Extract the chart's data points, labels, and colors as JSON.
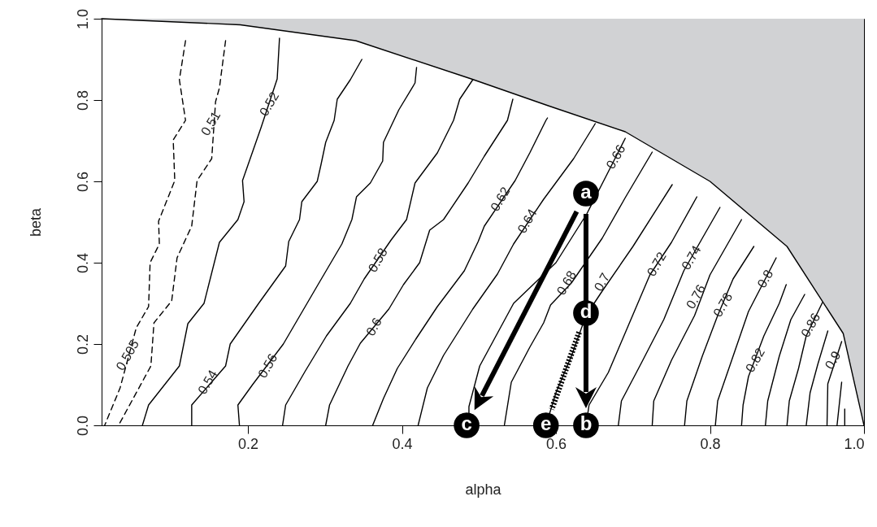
{
  "chart_data": {
    "type": "line",
    "xlabel": "alpha",
    "ylabel": "beta",
    "xlim": [
      0.01,
      1.0
    ],
    "ylim": [
      0,
      1.0
    ],
    "xticks": [
      0.2,
      0.4,
      0.6,
      0.8,
      {
        "value": 1.0,
        "label": "1.0"
      }
    ],
    "yticks": [
      {
        "value": 0,
        "label": "0.0"
      },
      0.2,
      0.4,
      0.6,
      0.8,
      {
        "value": 1.0,
        "label": "1.0"
      }
    ],
    "grid": false,
    "series": [
      {
        "color": "#000000",
        "x": [
          0.01,
          0.19,
          0.34,
          0.49,
          0.59,
          0.69,
          0.8,
          0.9,
          0.973,
          1.0
        ],
        "values": [
          1.0,
          0.985,
          0.946,
          0.852,
          0.786,
          0.722,
          0.6,
          0.44,
          0.226,
          0
        ],
        "lower": [
          1.0,
          0.985,
          0.946,
          0.852,
          0.786,
          0.722,
          0.6,
          0.44,
          0.226,
          0
        ],
        "upper": [
          1.0,
          1.0,
          1.0,
          1.0,
          1.0,
          1.0,
          1.0,
          1.0,
          1.0,
          1.0
        ]
      },
      {
        "color": "#000000",
        "line_style": "dashed",
        "x": [
          0.119,
          0.111,
          0.119,
          0.103,
          0.105,
          0.084,
          0.085,
          0.073,
          0.071,
          0.055,
          0.034,
          0.014
        ],
        "values": [
          0.946,
          0.85,
          0.75,
          0.702,
          0.602,
          0.502,
          0.446,
          0.4,
          0.292,
          0.24,
          0.092,
          0
        ]
      },
      {
        "color": "#000000",
        "line_style": "dashed",
        "x": [
          0.171,
          0.163,
          0.158,
          0.153,
          0.134,
          0.127,
          0.108,
          0.101,
          0.078,
          0.074,
          0.032
        ],
        "values": [
          0.946,
          0.83,
          0.796,
          0.656,
          0.602,
          0.49,
          0.412,
          0.306,
          0.252,
          0.146,
          0
        ]
      },
      {
        "color": "#000000",
        "x": [
          0.241,
          0.238,
          0.217,
          0.193,
          0.195,
          0.187,
          0.163,
          0.143,
          0.122,
          0.111,
          0.071,
          0.063
        ],
        "values": [
          0.952,
          0.852,
          0.732,
          0.602,
          0.55,
          0.506,
          0.45,
          0.3,
          0.25,
          0.146,
          0.05,
          0
        ]
      },
      {
        "color": "#000000",
        "x": [
          0.348,
          0.333,
          0.316,
          0.312,
          0.301,
          0.295,
          0.29,
          0.27,
          0.267,
          0.253,
          0.249,
          0.214,
          0.177,
          0.171,
          0.127,
          0.127
        ],
        "values": [
          0.9,
          0.85,
          0.802,
          0.75,
          0.696,
          0.642,
          0.6,
          0.55,
          0.506,
          0.452,
          0.392,
          0.3,
          0.2,
          0.146,
          0.05,
          0
        ]
      },
      {
        "color": "#000000",
        "x": [
          0.419,
          0.417,
          0.396,
          0.376,
          0.375,
          0.359,
          0.341,
          0.335,
          0.322,
          0.291,
          0.246,
          0.206,
          0.187,
          0.189
        ],
        "values": [
          0.88,
          0.842,
          0.776,
          0.696,
          0.65,
          0.596,
          0.562,
          0.506,
          0.446,
          0.346,
          0.2,
          0.1,
          0.05,
          0
        ]
      },
      {
        "color": "#000000",
        "x": [
          0.492,
          0.475,
          0.467,
          0.446,
          0.417,
          0.406,
          0.386,
          0.351,
          0.333,
          0.302,
          0.274,
          0.249,
          0.245
        ],
        "values": [
          0.85,
          0.802,
          0.75,
          0.67,
          0.596,
          0.506,
          0.456,
          0.36,
          0.3,
          0.22,
          0.132,
          0.05,
          0
        ]
      },
      {
        "color": "#000000",
        "x": [
          0.544,
          0.537,
          0.507,
          0.486,
          0.454,
          0.436,
          0.423,
          0.402,
          0.383,
          0.346,
          0.33,
          0.306,
          0.301
        ],
        "values": [
          0.802,
          0.75,
          0.662,
          0.596,
          0.506,
          0.48,
          0.4,
          0.346,
          0.286,
          0.202,
          0.146,
          0.05,
          0
        ]
      },
      {
        "color": "#000000",
        "x": [
          0.589,
          0.587,
          0.566,
          0.547,
          0.507,
          0.499,
          0.481,
          0.446,
          0.418,
          0.394,
          0.376,
          0.362
        ],
        "values": [
          0.756,
          0.75,
          0.67,
          0.602,
          0.49,
          0.452,
          0.38,
          0.292,
          0.212,
          0.14,
          0.066,
          0
        ]
      },
      {
        "color": "#000000",
        "x": [
          0.651,
          0.623,
          0.584,
          0.545,
          0.524,
          0.492,
          0.454,
          0.433,
          0.421
        ],
        "values": [
          0.742,
          0.656,
          0.556,
          0.446,
          0.372,
          0.286,
          0.172,
          0.092,
          0
        ]
      },
      {
        "color": "#000000",
        "x": [
          0.69,
          0.667,
          0.64,
          0.6,
          0.545,
          0.501,
          0.487,
          0.487
        ],
        "values": [
          0.706,
          0.62,
          0.52,
          0.4,
          0.3,
          0.146,
          0.046,
          0
        ]
      },
      {
        "color": "#000000",
        "x": [
          0.725,
          0.69,
          0.66,
          0.62,
          0.593,
          0.584,
          0.566,
          0.542,
          0.533
        ],
        "values": [
          0.672,
          0.56,
          0.46,
          0.35,
          0.296,
          0.252,
          0.192,
          0.106,
          0
        ]
      },
      {
        "color": "#000000",
        "x": [
          0.751,
          0.7,
          0.66,
          0.639,
          0.62,
          0.6,
          0.587
        ],
        "values": [
          0.592,
          0.44,
          0.33,
          0.27,
          0.17,
          0.08,
          0
        ]
      },
      {
        "color": "#000000",
        "x": [
          0.783,
          0.75,
          0.722,
          0.695,
          0.668,
          0.643,
          0.639
        ],
        "values": [
          0.562,
          0.45,
          0.37,
          0.25,
          0.13,
          0.05,
          0
        ]
      },
      {
        "color": "#000000",
        "x": [
          0.813,
          0.79,
          0.766,
          0.74,
          0.71,
          0.685,
          0.681
        ],
        "values": [
          0.536,
          0.46,
          0.38,
          0.26,
          0.15,
          0.06,
          0
        ]
      },
      {
        "color": "#000000",
        "x": [
          0.841,
          0.8,
          0.78,
          0.75,
          0.727,
          0.725
        ],
        "values": [
          0.506,
          0.37,
          0.27,
          0.16,
          0.06,
          0
        ]
      },
      {
        "color": "#000000",
        "x": [
          0.857,
          0.83,
          0.81,
          0.79,
          0.77,
          0.767
        ],
        "values": [
          0.44,
          0.36,
          0.27,
          0.17,
          0.06,
          0
        ]
      },
      {
        "color": "#000000",
        "x": [
          0.886,
          0.85,
          0.83,
          0.81,
          0.807
        ],
        "values": [
          0.412,
          0.28,
          0.17,
          0.06,
          0
        ]
      },
      {
        "color": "#000000",
        "x": [
          0.899,
          0.89,
          0.87,
          0.85,
          0.843,
          0.841
        ],
        "values": [
          0.346,
          0.3,
          0.22,
          0.12,
          0.05,
          0
        ]
      },
      {
        "color": "#000000",
        "x": [
          0.923,
          0.905,
          0.89,
          0.875,
          0.872
        ],
        "values": [
          0.322,
          0.26,
          0.17,
          0.06,
          0
        ]
      },
      {
        "color": "#000000",
        "x": [
          0.946,
          0.925,
          0.915,
          0.903,
          0.9
        ],
        "values": [
          0.302,
          0.22,
          0.14,
          0.06,
          0
        ]
      },
      {
        "color": "#000000",
        "x": [
          0.953,
          0.94,
          0.93,
          0.925
        ],
        "values": [
          0.232,
          0.15,
          0.08,
          0
        ]
      },
      {
        "color": "#000000",
        "x": [
          0.971,
          0.953,
          0.952
        ],
        "values": [
          0.206,
          0.102,
          0
        ]
      },
      {
        "color": "#000000",
        "x": [
          0.971,
          0.965
        ],
        "values": [
          0.106,
          0
        ]
      },
      {
        "color": "#000000",
        "x": [
          0.975,
          0.975
        ],
        "values": [
          0.04,
          0
        ]
      },
      {
        "type": "scatter",
        "color": "#000000",
        "marker": "circle",
        "x": [
          0.639,
          0.639,
          0.484,
          0.639,
          0.587
        ],
        "values": [
          0.57,
          0,
          0,
          0.276,
          0
        ],
        "value_labels": [
          "a",
          "b",
          "c",
          "d",
          "e"
        ]
      }
    ],
    "annotations": [
      {
        "text": "0.505",
        "x": 0.044,
        "y": 0.172
      },
      {
        "text": "0.51",
        "x": 0.152,
        "y": 0.742
      },
      {
        "text": "0.52",
        "x": 0.228,
        "y": 0.79
      },
      {
        "text": "0.54",
        "x": 0.148,
        "y": 0.106
      },
      {
        "text": "0.56",
        "x": 0.226,
        "y": 0.146
      },
      {
        "text": "0.58",
        "x": 0.369,
        "y": 0.406
      },
      {
        "text": "0.6",
        "x": 0.364,
        "y": 0.242
      },
      {
        "text": "0.62",
        "x": 0.528,
        "y": 0.556
      },
      {
        "text": "0.64",
        "x": 0.563,
        "y": 0.502
      },
      {
        "text": "0.66",
        "x": 0.678,
        "y": 0.66
      },
      {
        "text": "0.68",
        "x": 0.614,
        "y": 0.35
      },
      {
        "text": "0.7",
        "x": 0.66,
        "y": 0.352
      },
      {
        "text": "0.72",
        "x": 0.731,
        "y": 0.396
      },
      {
        "text": "0.74",
        "x": 0.776,
        "y": 0.412
      },
      {
        "text": "0.76",
        "x": 0.782,
        "y": 0.316
      },
      {
        "text": "0.78",
        "x": 0.817,
        "y": 0.296
      },
      {
        "text": "0.8",
        "x": 0.872,
        "y": 0.36
      },
      {
        "text": "0.82",
        "x": 0.859,
        "y": 0.16
      },
      {
        "text": "0.86",
        "x": 0.931,
        "y": 0.246
      },
      {
        "text": "0.9",
        "x": 0.96,
        "y": 0.16
      }
    ]
  }
}
